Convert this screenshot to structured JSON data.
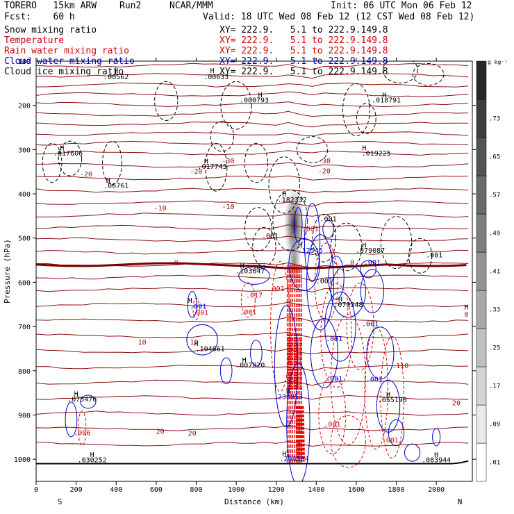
{
  "header": {
    "model": "TORERO   15km ARW",
    "run": "Run2",
    "org": "NCAR/MMM",
    "init": "Init: 06 UTC Mon 06 Feb 12",
    "fcst": "Fcst:    60 h",
    "valid": "Valid: 18 UTC Wed 08 Feb 12 (12 CST Wed 08 Feb 12)"
  },
  "fields": [
    {
      "label": "Snow mixing ratio",
      "xy": "XY= 222.9.   5.1 to 222.9.149.8",
      "color": "#000000"
    },
    {
      "label": "Temperature",
      "xy": "XY= 222.9.   5.1 to 222.9.149.8",
      "color": "#d40000"
    },
    {
      "label": "Rain water mixing ratio",
      "xy": "XY= 222.9.   5.1 to 222.9.149.8",
      "color": "#d40000"
    },
    {
      "label": "Cloud water mixing ratio",
      "xy": "XY= 222.9.   5.1 to 222.9.149.8",
      "color": "#0000c8"
    },
    {
      "label": "Cloud ice mixing ratio",
      "xy": "XY= 222.9.   5.1 to 222.9.149.8",
      "color": "#000000"
    }
  ],
  "chart_data": {
    "type": "cross-section contour",
    "xlabel": "Distance (km)",
    "ylabel": "Pressure (hPa)",
    "xlim": [
      0,
      2180
    ],
    "ylim": [
      1050,
      100
    ],
    "x_ticks": [
      0,
      200,
      400,
      600,
      800,
      1000,
      1200,
      1400,
      1600,
      1800,
      2000
    ],
    "y_ticks": [
      200,
      300,
      400,
      500,
      600,
      700,
      800,
      900,
      1000
    ],
    "top_tick_label": "100",
    "left_end": "S",
    "right_end": "N",
    "colorbar_unit": "g kg⁻¹",
    "colorbar_ticks": [
      ".01",
      ".09",
      ".17",
      ".25",
      ".33",
      ".41",
      ".49",
      ".57",
      ".65",
      ".73"
    ],
    "temperature_labels": [
      {
        "text": "-30",
        "x": 960,
        "p": 326
      },
      {
        "text": "-30",
        "x": 1440,
        "p": 326
      },
      {
        "text": "-20",
        "x": 250,
        "p": 356
      },
      {
        "text": "-20",
        "x": 800,
        "p": 350
      },
      {
        "text": "-20",
        "x": 1440,
        "p": 349
      },
      {
        "text": "-10",
        "x": 620,
        "p": 433
      },
      {
        "text": "-10",
        "x": 960,
        "p": 430
      },
      {
        "text": "0",
        "x": 700,
        "p": 556
      },
      {
        "text": "0",
        "x": 1580,
        "p": 556
      },
      {
        "text": "0",
        "x": 2150,
        "p": 673
      },
      {
        "text": "10",
        "x": 530,
        "p": 736
      },
      {
        "text": "10",
        "x": 790,
        "p": 736
      },
      {
        "text": "20",
        "x": 620,
        "p": 938
      },
      {
        "text": "20",
        "x": 780,
        "p": 942
      },
      {
        "text": "20",
        "x": 2100,
        "p": 873
      }
    ],
    "maxima": [
      {
        "text": ".00562",
        "x": 400,
        "p": 136
      },
      {
        "text": ".00633",
        "x": 900,
        "p": 136
      },
      {
        "text": ".000793",
        "x": 1090,
        "p": 189
      },
      {
        "text": ".018791",
        "x": 1750,
        "p": 189
      },
      {
        "text": ".017606",
        "x": 160,
        "p": 309
      },
      {
        "text": ".017743",
        "x": 880,
        "p": 339
      },
      {
        "text": ".019225",
        "x": 1700,
        "p": 309
      },
      {
        "text": ".06761",
        "x": 400,
        "p": 382
      },
      {
        "text": ".182332",
        "x": 1280,
        "p": 414
      },
      {
        "text": ".103647",
        "x": 1070,
        "p": 575
      },
      {
        "text": ".12545",
        "x": 1370,
        "p": 529
      },
      {
        "text": ".079087",
        "x": 1670,
        "p": 529
      },
      {
        "text": ".070348",
        "x": 1560,
        "p": 651
      },
      {
        "text": ".104661",
        "x": 870,
        "p": 751
      },
      {
        "text": ".007820",
        "x": 1070,
        "p": 788
      },
      {
        "text": ".075476",
        "x": 230,
        "p": 865
      },
      {
        "text": ".055190",
        "x": 1780,
        "p": 866
      },
      {
        "text": ".030252",
        "x": 280,
        "p": 1002
      },
      {
        "text": ".083944",
        "x": 2000,
        "p": 1002
      },
      {
        "text": ".233853",
        "x": 1260,
        "p": 859
      },
      {
        "text": ".298584",
        "x": 1290,
        "p": 1000
      }
    ],
    "small_labels": [
      {
        "text": ".001",
        "x": 1110,
        "p": 567,
        "color": "#0000c8"
      },
      {
        "text": ".001",
        "x": 810,
        "p": 655,
        "color": "#0000c8"
      },
      {
        "text": ".001",
        "x": 1670,
        "p": 694,
        "color": "#0000c8"
      },
      {
        "text": ".001",
        "x": 1490,
        "p": 728,
        "color": "#0000c8"
      },
      {
        "text": ".001",
        "x": 1690,
        "p": 820,
        "color": "#0000c8"
      },
      {
        "text": ".001",
        "x": 1490,
        "p": 818,
        "color": "#0000c8"
      },
      {
        "text": ".001",
        "x": 1680,
        "p": 555,
        "color": "#0000c8"
      },
      {
        "text": ".017",
        "x": 1090,
        "p": 630,
        "color": "#d40000"
      },
      {
        "text": ".001",
        "x": 1060,
        "p": 668,
        "color": "#d40000"
      },
      {
        "text": ".001",
        "x": 820,
        "p": 669,
        "color": "#d40000"
      },
      {
        "text": ".001",
        "x": 1370,
        "p": 480,
        "color": "#d40000"
      },
      {
        "text": ".001",
        "x": 1480,
        "p": 921,
        "color": "#d40000"
      },
      {
        "text": ".001",
        "x": 1770,
        "p": 957,
        "color": "#d40000"
      },
      {
        "text": ".110",
        "x": 1820,
        "p": 789,
        "color": "#d40000"
      },
      {
        "text": ".001",
        "x": 1200,
        "p": 615,
        "color": "#d40000"
      },
      {
        "text": ".006",
        "x": 230,
        "p": 941,
        "color": "#d40000"
      },
      {
        "text": ".001",
        "x": 1460,
        "p": 457,
        "color": "#000000"
      },
      {
        "text": ".001",
        "x": 1990,
        "p": 539,
        "color": "#000000"
      },
      {
        "text": ".001",
        "x": 1170,
        "p": 496,
        "color": "#000000"
      },
      {
        "text": ".001",
        "x": 1440,
        "p": 598,
        "color": "#000000"
      }
    ],
    "h_markers": [
      {
        "x": 400,
        "p": 122
      },
      {
        "x": 880,
        "p": 122
      },
      {
        "x": 1120,
        "p": 177
      },
      {
        "x": 1740,
        "p": 177
      },
      {
        "x": 130,
        "p": 297
      },
      {
        "x": 850,
        "p": 327
      },
      {
        "x": 1640,
        "p": 297
      },
      {
        "x": 360,
        "p": 370
      },
      {
        "x": 1240,
        "p": 401
      },
      {
        "x": 1030,
        "p": 563
      },
      {
        "x": 1320,
        "p": 517
      },
      {
        "x": 1640,
        "p": 517
      },
      {
        "x": 1520,
        "p": 639
      },
      {
        "x": 800,
        "p": 739
      },
      {
        "x": 1040,
        "p": 776
      },
      {
        "x": 200,
        "p": 853
      },
      {
        "x": 1760,
        "p": 854
      },
      {
        "x": 280,
        "p": 990
      },
      {
        "x": 2000,
        "p": 990
      },
      {
        "x": 2150,
        "p": 657
      },
      {
        "x": 1240,
        "p": 988
      },
      {
        "x": 1260,
        "p": 846
      },
      {
        "x": 770,
        "p": 642
      }
    ]
  }
}
